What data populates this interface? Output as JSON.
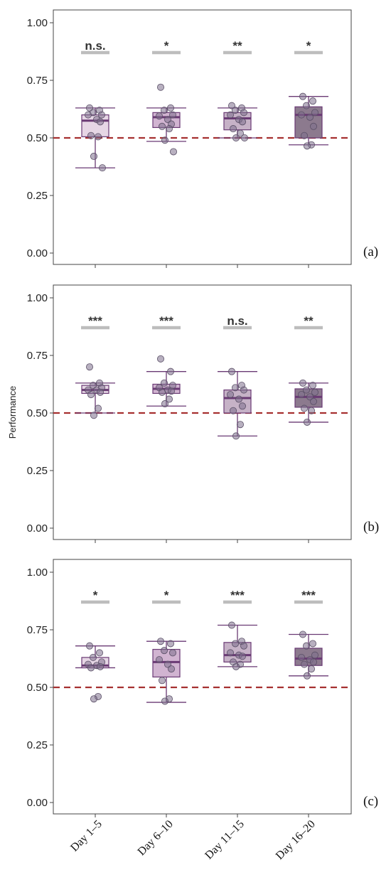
{
  "chart_data": {
    "type": "boxplot",
    "categories": [
      "Day 1–5",
      "Day 6–10",
      "Day 11–15",
      "Day 16–20"
    ],
    "ylabel": "Performance",
    "ylim": [
      0,
      1
    ],
    "yticks": [
      "0.00",
      "0.25",
      "0.50",
      "0.75",
      "1.00"
    ],
    "reference_line": 0.5,
    "grid": false,
    "colors": {
      "fills": [
        "#e6d6e5",
        "#d1b4d1",
        "#c6b2c7",
        "#8c7a8e"
      ],
      "median": "#6a3a74",
      "whisker": "#6a3a74",
      "point": "#7d6f8c",
      "reference": "#a63030",
      "sig_bar": "#bdbdbd"
    },
    "panels": [
      {
        "label": "(a)",
        "groups": [
          {
            "q1": 0.505,
            "median": 0.575,
            "q3": 0.6,
            "low": 0.37,
            "high": 0.63,
            "sig": "n.s.",
            "points": [
              0.63,
              0.62,
              0.61,
              0.6,
              0.6,
              0.58,
              0.57,
              0.51,
              0.505,
              0.42,
              0.37
            ]
          },
          {
            "q1": 0.545,
            "median": 0.59,
            "q3": 0.61,
            "low": 0.485,
            "high": 0.63,
            "sig": "*",
            "points": [
              0.72,
              0.63,
              0.62,
              0.6,
              0.595,
              0.58,
              0.56,
              0.55,
              0.54,
              0.49,
              0.44
            ]
          },
          {
            "q1": 0.535,
            "median": 0.585,
            "q3": 0.61,
            "low": 0.5,
            "high": 0.63,
            "sig": "**",
            "points": [
              0.64,
              0.63,
              0.62,
              0.61,
              0.6,
              0.58,
              0.57,
              0.54,
              0.52,
              0.5,
              0.5
            ]
          },
          {
            "q1": 0.5,
            "median": 0.6,
            "q3": 0.635,
            "low": 0.47,
            "high": 0.68,
            "sig": "*",
            "points": [
              0.68,
              0.66,
              0.64,
              0.61,
              0.6,
              0.59,
              0.55,
              0.51,
              0.47,
              0.465
            ]
          }
        ]
      },
      {
        "label": "(b)",
        "groups": [
          {
            "q1": 0.585,
            "median": 0.6,
            "q3": 0.62,
            "low": 0.5,
            "high": 0.63,
            "sig": "***",
            "points": [
              0.7,
              0.63,
              0.62,
              0.61,
              0.6,
              0.6,
              0.59,
              0.58,
              0.52,
              0.49
            ]
          },
          {
            "q1": 0.585,
            "median": 0.605,
            "q3": 0.625,
            "low": 0.53,
            "high": 0.68,
            "sig": "***",
            "points": [
              0.735,
              0.68,
              0.63,
              0.62,
              0.61,
              0.6,
              0.595,
              0.59,
              0.56,
              0.54
            ]
          },
          {
            "q1": 0.5,
            "median": 0.565,
            "q3": 0.6,
            "low": 0.4,
            "high": 0.68,
            "sig": "n.s.",
            "points": [
              0.68,
              0.62,
              0.61,
              0.6,
              0.58,
              0.56,
              0.53,
              0.51,
              0.45,
              0.4
            ]
          },
          {
            "q1": 0.525,
            "median": 0.57,
            "q3": 0.605,
            "low": 0.46,
            "high": 0.63,
            "sig": "**",
            "points": [
              0.63,
              0.62,
              0.6,
              0.59,
              0.58,
              0.57,
              0.55,
              0.52,
              0.51,
              0.46
            ]
          }
        ]
      },
      {
        "label": "(c)",
        "groups": [
          {
            "q1": 0.585,
            "median": 0.595,
            "q3": 0.63,
            "low": 0.585,
            "high": 0.68,
            "sig": "*",
            "points": [
              0.68,
              0.65,
              0.63,
              0.61,
              0.6,
              0.595,
              0.59,
              0.585,
              0.46,
              0.45
            ]
          },
          {
            "q1": 0.545,
            "median": 0.61,
            "q3": 0.665,
            "low": 0.435,
            "high": 0.7,
            "sig": "*",
            "points": [
              0.7,
              0.69,
              0.66,
              0.65,
              0.62,
              0.6,
              0.58,
              0.53,
              0.45,
              0.44
            ]
          },
          {
            "q1": 0.61,
            "median": 0.64,
            "q3": 0.695,
            "low": 0.59,
            "high": 0.77,
            "sig": "***",
            "points": [
              0.77,
              0.7,
              0.69,
              0.68,
              0.65,
              0.64,
              0.635,
              0.61,
              0.6,
              0.59
            ]
          },
          {
            "q1": 0.595,
            "median": 0.625,
            "q3": 0.67,
            "low": 0.55,
            "high": 0.73,
            "sig": "***",
            "points": [
              0.73,
              0.69,
              0.68,
              0.64,
              0.63,
              0.62,
              0.61,
              0.6,
              0.58,
              0.55
            ]
          }
        ]
      }
    ]
  }
}
